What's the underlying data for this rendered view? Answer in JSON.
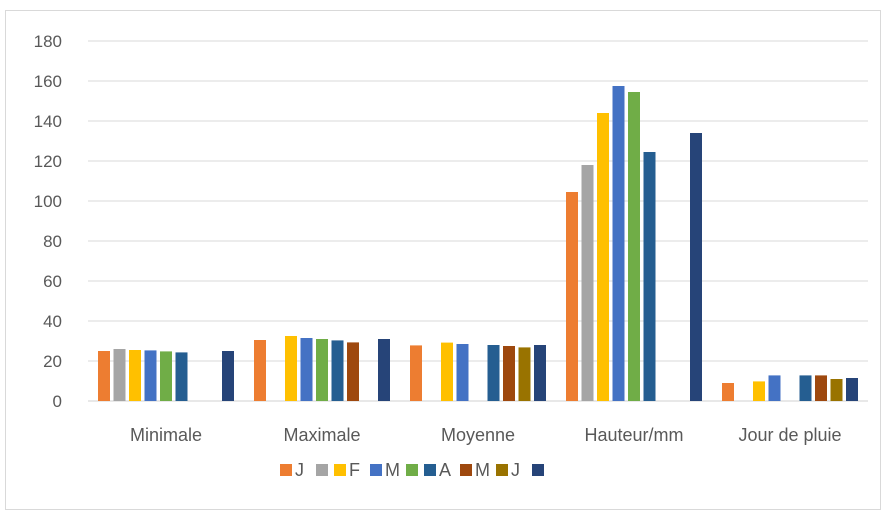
{
  "chart_data": {
    "type": "bar",
    "title": "",
    "xlabel": "",
    "ylabel": "",
    "ylim": [
      0,
      180
    ],
    "yticks": [
      0,
      20,
      40,
      60,
      80,
      100,
      120,
      140,
      160,
      180
    ],
    "grid": true,
    "legend_position": "bottom",
    "categories": [
      "Minimale",
      "Maximale",
      "Moyenne",
      "Hauteur/mm",
      "Jour de pluie"
    ],
    "series": [
      {
        "name": "J",
        "color": "#ED7D31",
        "values": [
          25,
          30.5,
          27.8,
          104.5,
          9
        ]
      },
      {
        "name": "",
        "color": "#A5A5A5",
        "values": [
          26,
          null,
          null,
          118,
          null
        ]
      },
      {
        "name": "F",
        "color": "#FFC000",
        "values": [
          25.5,
          32.5,
          29.2,
          144,
          9.8
        ]
      },
      {
        "name": "M",
        "color": "#4472C4",
        "values": [
          25.3,
          31.5,
          28.5,
          157.5,
          12.8
        ]
      },
      {
        "name": "",
        "color": "#70AD47",
        "values": [
          24.8,
          31,
          null,
          154.5,
          null
        ]
      },
      {
        "name": "A",
        "color": "#255E91",
        "values": [
          24.3,
          30.3,
          28,
          124.5,
          12.8
        ]
      },
      {
        "name": "M",
        "color": "#9E480E",
        "values": [
          null,
          29.3,
          27.5,
          null,
          12.8
        ]
      },
      {
        "name": "J",
        "color": "#997300",
        "values": [
          null,
          null,
          26.8,
          null,
          11
        ]
      },
      {
        "name": "",
        "color": "#264478",
        "values": [
          25,
          31,
          28,
          134,
          11.5
        ]
      }
    ]
  }
}
